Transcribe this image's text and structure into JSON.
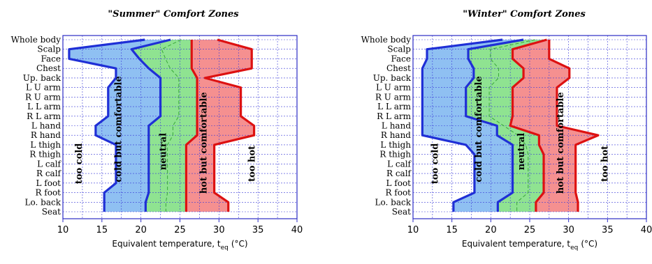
{
  "chart_data": [
    {
      "type": "area",
      "title": "\"Summer\" Comfort Zones",
      "xlabel": "Equivalent temperature, t",
      "xlabel_sub": "eq",
      "xlabel_unit": "(°C)",
      "xlim": [
        10,
        40
      ],
      "xticks": [
        "10",
        "15",
        "20",
        "25",
        "30",
        "35",
        "40"
      ],
      "grid": true,
      "body_parts": [
        "Whole body",
        "Scalp",
        "Face",
        "Chest",
        "Up. back",
        "L U arm",
        "R U arm",
        "L L arm",
        "R L arm",
        "L hand",
        "R hand",
        "L thigh",
        "R thigh",
        "L calf",
        "R calf",
        "L foot",
        "R foot",
        "Lo. back",
        "Seat"
      ],
      "boundaries": [
        {
          "name": "too cold / cold but comfortable",
          "values": [
            20.5,
            10.8,
            10.8,
            16.8,
            16.8,
            15.8,
            15.8,
            15.8,
            15.8,
            14.2,
            14.2,
            16.8,
            16.8,
            16.8,
            16.8,
            16.8,
            15.3,
            15.3,
            15.3
          ]
        },
        {
          "name": "cold but comfortable / neutral",
          "values": [
            23.8,
            18.8,
            19.8,
            21.0,
            22.5,
            22.5,
            22.5,
            22.5,
            22.5,
            21.0,
            21.0,
            21.0,
            21.0,
            21.0,
            21.0,
            21.0,
            21.0,
            20.6,
            20.6
          ]
        },
        {
          "name": "neutral / hot but comfortable",
          "values": [
            26.5,
            26.5,
            26.5,
            26.5,
            27.2,
            27.2,
            27.2,
            27.2,
            27.2,
            27.2,
            27.2,
            25.8,
            25.8,
            25.8,
            25.8,
            25.8,
            25.8,
            25.8,
            25.8
          ]
        },
        {
          "name": "hot but comfortable / too hot",
          "values": [
            29.8,
            34.2,
            34.2,
            34.2,
            28.2,
            32.8,
            32.8,
            32.8,
            32.8,
            34.5,
            34.5,
            29.4,
            29.4,
            29.4,
            29.4,
            29.4,
            29.4,
            31.2,
            31.2
          ]
        }
      ],
      "zones": [
        "too cold",
        "cold but comfortable",
        "neutral",
        "hot but comfortable",
        "too hot"
      ],
      "colors": {
        "cold_fill": "#8fc0f2",
        "neutral_fill": "#8fe391",
        "hot_fill": "#f59090",
        "cold_line": "#1f2fd6",
        "hot_line": "#dd1111",
        "neutral_line": "#3aa83a"
      }
    },
    {
      "type": "area",
      "title": "\"Winter\" Comfort Zones",
      "xlabel": "Equivalent temperature, t",
      "xlabel_sub": "eq",
      "xlabel_unit": "(°C)",
      "xlim": [
        10,
        40
      ],
      "xticks": [
        "10",
        "15",
        "20",
        "25",
        "30",
        "35",
        "40"
      ],
      "grid": true,
      "body_parts": [
        "Whole body",
        "Scalp",
        "Face",
        "Chest",
        "Up. back",
        "L U arm",
        "R U arm",
        "L L arm",
        "R L arm",
        "L hand",
        "R hand",
        "L thigh",
        "R thigh",
        "L calf",
        "R calf",
        "L foot",
        "R foot",
        "Lo. back",
        "Seat"
      ],
      "boundaries": [
        {
          "name": "too cold / cold but comfortable",
          "values": [
            21.5,
            11.8,
            11.8,
            11.2,
            11.2,
            11.2,
            11.2,
            11.2,
            11.2,
            11.2,
            11.2,
            16.8,
            17.9,
            17.9,
            17.9,
            17.9,
            17.9,
            15.2,
            15.2
          ]
        },
        {
          "name": "cold but comfortable / neutral",
          "values": [
            24.2,
            17.1,
            17.1,
            17.8,
            17.8,
            16.8,
            16.8,
            16.8,
            16.8,
            20.8,
            20.8,
            22.8,
            22.8,
            22.8,
            22.8,
            22.8,
            22.8,
            20.9,
            20.9
          ]
        },
        {
          "name": "neutral / hot but comfortable",
          "values": [
            27.2,
            22.8,
            22.8,
            24.2,
            24.2,
            22.8,
            22.8,
            22.8,
            22.8,
            22.5,
            26.2,
            26.2,
            26.8,
            26.8,
            26.8,
            26.8,
            26.8,
            25.8,
            25.8
          ]
        },
        {
          "name": "hot but comfortable / too hot",
          "values": [
            27.5,
            27.5,
            27.5,
            30.1,
            30.1,
            28.5,
            28.5,
            28.5,
            28.5,
            28.5,
            33.8,
            30.9,
            30.9,
            30.9,
            30.9,
            30.9,
            30.9,
            31.2,
            31.2
          ]
        }
      ],
      "zones": [
        "too cold",
        "cold but comfortable",
        "neutral",
        "hot but comfortable",
        "too hot"
      ],
      "colors": {
        "cold_fill": "#8fc0f2",
        "neutral_fill": "#8fe391",
        "hot_fill": "#f59090",
        "cold_line": "#1f2fd6",
        "hot_line": "#dd1111",
        "neutral_line": "#3aa83a"
      }
    }
  ]
}
